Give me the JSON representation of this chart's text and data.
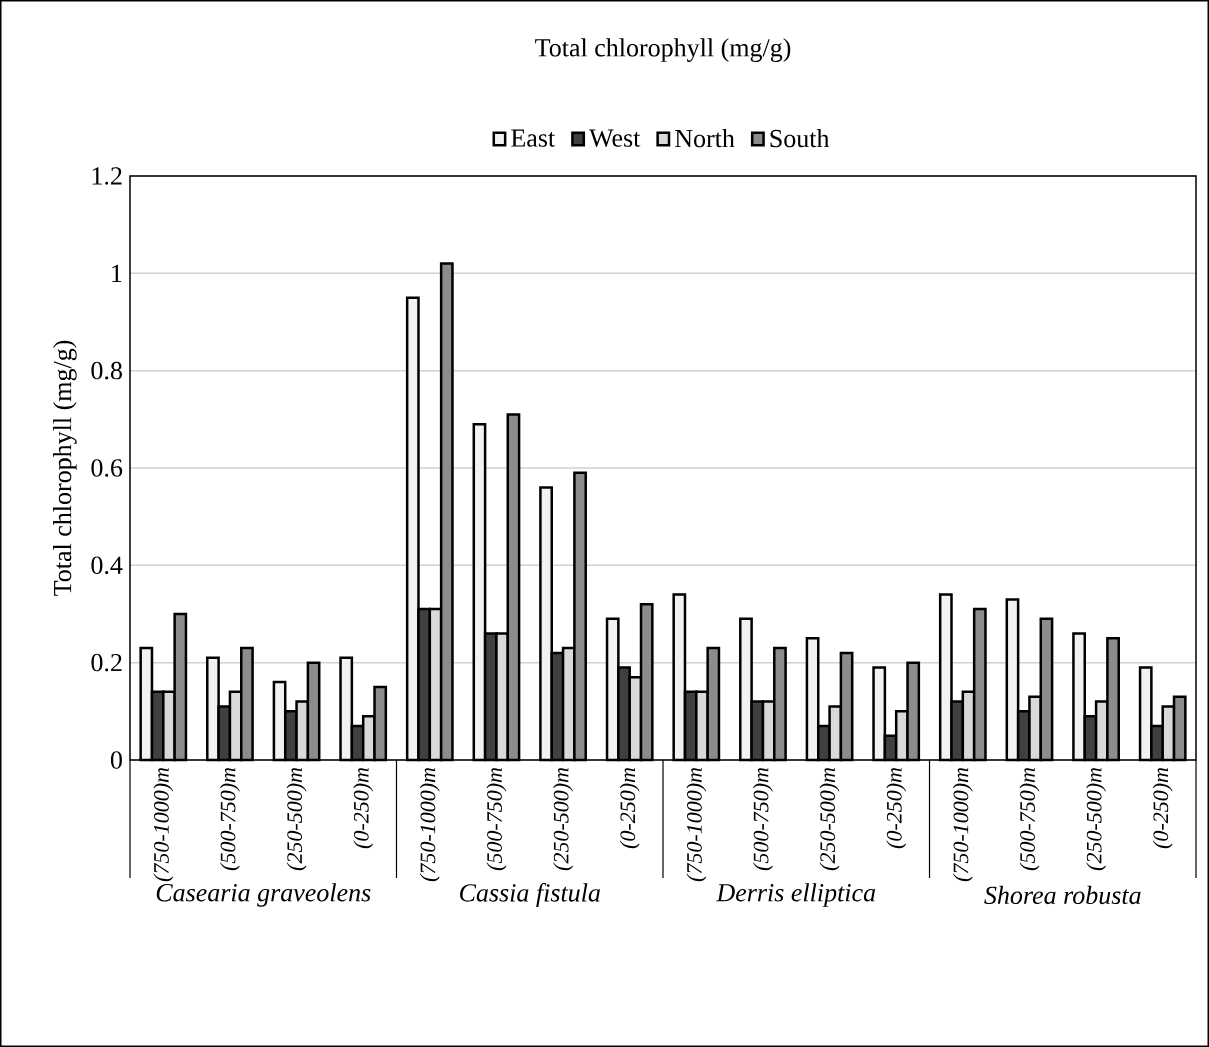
{
  "chart_data": {
    "type": "bar",
    "title": "Total chlorophyll (mg/g)",
    "ylabel": "Total chlorophyll (mg/g)",
    "categories": [
      "(750-1000)m",
      "(500-750)m",
      "(250-500)m",
      "(0-250)m",
      "(750-1000)m",
      "(500-750)m",
      "(250-500)m",
      "(0-250)m",
      "(750-1000)m",
      "(500-750)m",
      "(250-500)m",
      "(0-250)m",
      "(750-1000)m",
      "(500-750)m",
      "(250-500)m",
      "(0-250)m"
    ],
    "series": [
      {
        "name": "East",
        "color": "#f2f2f2",
        "values": [
          0.23,
          0.21,
          0.16,
          0.21,
          0.95,
          0.69,
          0.56,
          0.29,
          0.34,
          0.29,
          0.25,
          0.19,
          0.34,
          0.33,
          0.26,
          0.19
        ]
      },
      {
        "name": "West",
        "color": "#404040",
        "values": [
          0.14,
          0.11,
          0.1,
          0.07,
          0.31,
          0.26,
          0.22,
          0.19,
          0.14,
          0.12,
          0.07,
          0.05,
          0.12,
          0.1,
          0.09,
          0.07
        ]
      },
      {
        "name": "North",
        "color": "#d9d9d9",
        "values": [
          0.14,
          0.14,
          0.12,
          0.09,
          0.31,
          0.26,
          0.23,
          0.17,
          0.14,
          0.12,
          0.11,
          0.1,
          0.14,
          0.13,
          0.12,
          0.11
        ]
      },
      {
        "name": "South",
        "color": "#8c8c8c",
        "values": [
          0.3,
          0.23,
          0.2,
          0.15,
          1.02,
          0.71,
          0.59,
          0.32,
          0.23,
          0.23,
          0.22,
          0.2,
          0.31,
          0.29,
          0.25,
          0.13
        ]
      }
    ],
    "annotations": [
      "Casearia graveolens",
      "Cassia fistula",
      "Derris elliptica",
      "Shorea robusta"
    ],
    "ylim": [
      0,
      1.2
    ],
    "yticks": [
      0,
      0.2,
      0.4,
      0.6,
      0.8,
      1,
      1.2
    ],
    "grid": "y",
    "legend": "top"
  }
}
